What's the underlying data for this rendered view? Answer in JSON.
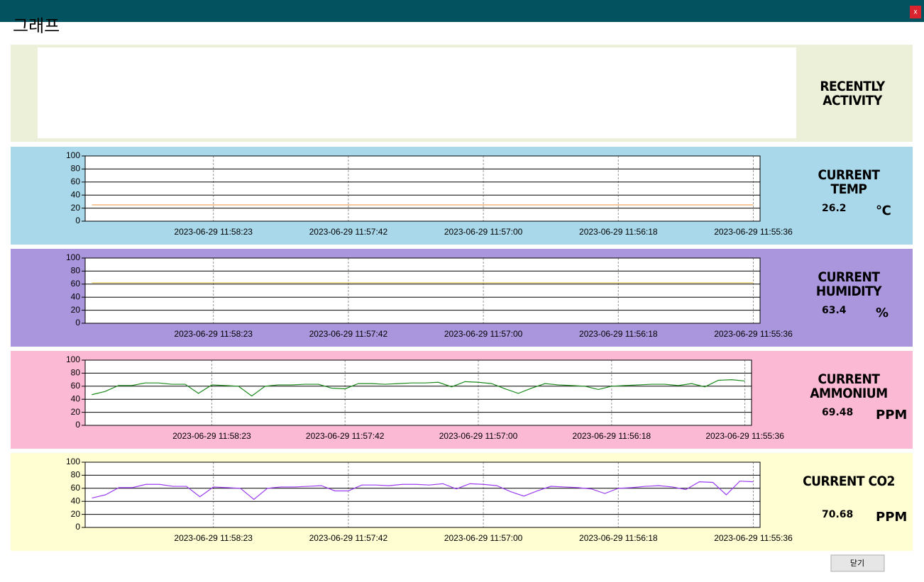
{
  "window": {
    "title": "그래프",
    "close": "x"
  },
  "activity": {
    "label": "RECENTLY ACTIVITY"
  },
  "panels": [
    {
      "label": "CURRENT TEMP",
      "value": 26.2,
      "unit": "℃"
    },
    {
      "label": "CURRENT HUMIDITY",
      "value": 63.4,
      "unit": "%"
    },
    {
      "label": "CURRENT AMMONIUM",
      "value": 69.48,
      "unit": "PPM"
    },
    {
      "label": "CURRENT CO2",
      "value": 70.68,
      "unit": "PPM"
    }
  ],
  "button": "닫기",
  "chart_data": [
    {
      "type": "line",
      "ylim": [
        0,
        100
      ],
      "yticks": [
        0,
        20,
        40,
        60,
        80,
        100
      ],
      "grid": true,
      "categories": [
        null,
        null,
        null,
        null,
        null,
        null,
        null,
        null,
        null,
        "2023-06-29 11:58:23",
        null,
        null,
        null,
        null,
        null,
        null,
        null,
        null,
        null,
        "2023-06-29 11:57:42",
        null,
        null,
        null,
        null,
        null,
        null,
        null,
        null,
        null,
        "2023-06-29 11:57:00",
        null,
        null,
        null,
        null,
        null,
        null,
        null,
        null,
        null,
        "2023-06-29 11:56:18",
        null,
        null,
        null,
        null,
        null,
        null,
        null,
        null,
        null,
        "2023-06-29 11:55:36"
      ],
      "series": [
        {
          "color": "#f2a65a",
          "values": [
            25,
            25,
            25,
            25,
            25,
            25,
            25,
            25,
            25,
            25,
            25,
            25,
            25,
            25,
            25,
            25,
            25,
            25,
            25,
            25,
            25,
            25,
            25,
            25,
            25,
            25,
            25,
            25,
            25,
            25,
            25,
            25,
            25,
            25,
            25,
            25,
            25,
            25,
            25,
            25,
            25,
            25,
            25,
            25,
            25,
            25,
            25,
            25,
            25,
            25
          ]
        }
      ]
    },
    {
      "type": "line",
      "ylim": [
        0,
        100
      ],
      "yticks": [
        0,
        20,
        40,
        60,
        80,
        100
      ],
      "grid": true,
      "categories": [
        null,
        null,
        null,
        null,
        null,
        null,
        null,
        null,
        null,
        "2023-06-29 11:58:23",
        null,
        null,
        null,
        null,
        null,
        null,
        null,
        null,
        null,
        "2023-06-29 11:57:42",
        null,
        null,
        null,
        null,
        null,
        null,
        null,
        null,
        null,
        "2023-06-29 11:57:00",
        null,
        null,
        null,
        null,
        null,
        null,
        null,
        null,
        null,
        "2023-06-29 11:56:18",
        null,
        null,
        null,
        null,
        null,
        null,
        null,
        null,
        null,
        "2023-06-29 11:55:36"
      ],
      "series": [
        {
          "color": "#e3c24a",
          "values": [
            62,
            62,
            62,
            62,
            62,
            62,
            62,
            62,
            62,
            62,
            62,
            62,
            62,
            62,
            62,
            62,
            62,
            62,
            62,
            62,
            62,
            62,
            62,
            62,
            62,
            62,
            62,
            62,
            62,
            62,
            62,
            62,
            62,
            62,
            62,
            62,
            62,
            62,
            62,
            62,
            62,
            62,
            62,
            62,
            62,
            62,
            62,
            62,
            62,
            62
          ]
        }
      ]
    },
    {
      "type": "line",
      "ylim": [
        0,
        100
      ],
      "yticks": [
        0,
        20,
        40,
        60,
        80,
        100
      ],
      "grid": true,
      "categories": [
        null,
        null,
        null,
        null,
        null,
        null,
        null,
        null,
        null,
        "2023-06-29 11:58:23",
        null,
        null,
        null,
        null,
        null,
        null,
        null,
        null,
        null,
        "2023-06-29 11:57:42",
        null,
        null,
        null,
        null,
        null,
        null,
        null,
        null,
        null,
        "2023-06-29 11:57:00",
        null,
        null,
        null,
        null,
        null,
        null,
        null,
        null,
        null,
        "2023-06-29 11:56:18",
        null,
        null,
        null,
        null,
        null,
        null,
        null,
        null,
        null,
        "2023-06-29 11:55:36"
      ],
      "series": [
        {
          "color": "#1b8a1b",
          "values": [
            47,
            52,
            61,
            61,
            65,
            65,
            63,
            63,
            49,
            62,
            61,
            60,
            45,
            60,
            62,
            62,
            63,
            63,
            57,
            56,
            64,
            64,
            63,
            64,
            65,
            65,
            66,
            59,
            67,
            66,
            64,
            56,
            49,
            57,
            64,
            62,
            61,
            60,
            55,
            60,
            61,
            62,
            63,
            63,
            61,
            64,
            59,
            69,
            70,
            68
          ]
        }
      ]
    },
    {
      "type": "line",
      "ylim": [
        0,
        100
      ],
      "yticks": [
        0,
        20,
        40,
        60,
        80,
        100
      ],
      "grid": true,
      "categories": [
        null,
        null,
        null,
        null,
        null,
        null,
        null,
        null,
        null,
        "2023-06-29 11:58:23",
        null,
        null,
        null,
        null,
        null,
        null,
        null,
        null,
        null,
        "2023-06-29 11:57:42",
        null,
        null,
        null,
        null,
        null,
        null,
        null,
        null,
        null,
        "2023-06-29 11:57:00",
        null,
        null,
        null,
        null,
        null,
        null,
        null,
        null,
        null,
        "2023-06-29 11:56:18",
        null,
        null,
        null,
        null,
        null,
        null,
        null,
        null,
        null,
        "2023-06-29 11:55:36"
      ],
      "series": [
        {
          "color": "#9b3cf0",
          "values": [
            45,
            50,
            61,
            61,
            66,
            66,
            63,
            63,
            47,
            62,
            61,
            60,
            43,
            60,
            62,
            62,
            63,
            64,
            56,
            56,
            65,
            65,
            64,
            66,
            66,
            65,
            67,
            59,
            67,
            66,
            64,
            55,
            48,
            56,
            63,
            62,
            61,
            59,
            52,
            60,
            61,
            63,
            64,
            62,
            58,
            70,
            69,
            50,
            71,
            70
          ]
        }
      ]
    }
  ]
}
